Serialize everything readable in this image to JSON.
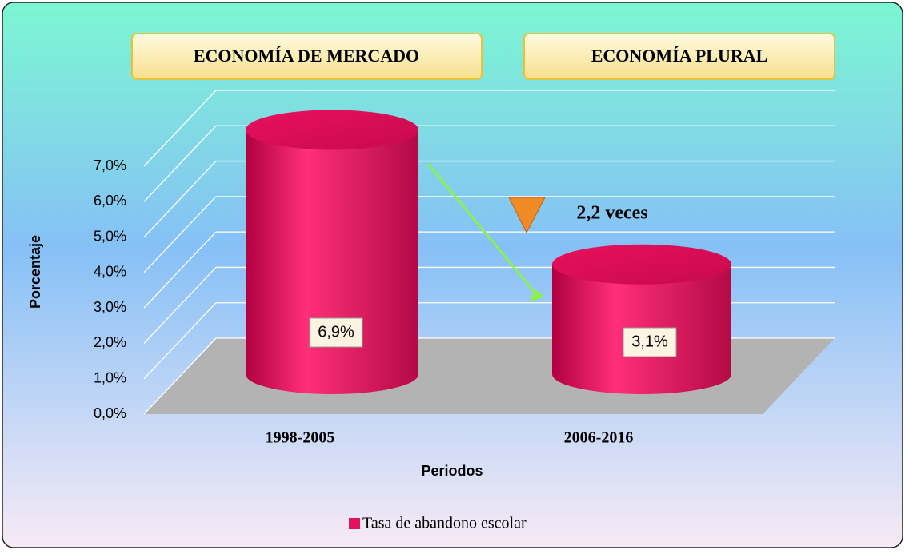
{
  "chart_data": {
    "type": "bar3d",
    "annotations": [
      "ECONOMÍA DE MERCADO",
      "ECONOMÍA PLURAL",
      "2,2 veces"
    ],
    "ylabel": "Porcentaje",
    "xlabel": "Periodos",
    "categories": [
      "1998-2005",
      "2006-2016"
    ],
    "series": [
      {
        "name": "Tasa de abandono escolar",
        "color": "#e3125f",
        "values": [
          6.9,
          3.1
        ],
        "value_labels": [
          "6,9%",
          "3,1%"
        ]
      }
    ],
    "ylim": [
      0,
      7
    ],
    "yticks": [
      {
        "value": 0,
        "label": "0,0%"
      },
      {
        "value": 1,
        "label": "1,0%"
      },
      {
        "value": 2,
        "label": "2,0%"
      },
      {
        "value": 3,
        "label": "3,0%"
      },
      {
        "value": 4,
        "label": "4,0%"
      },
      {
        "value": 5,
        "label": "5,0%"
      },
      {
        "value": 6,
        "label": "6,0%"
      },
      {
        "value": 7,
        "label": "7,0%"
      }
    ],
    "grid": true,
    "legend": "bottom"
  }
}
